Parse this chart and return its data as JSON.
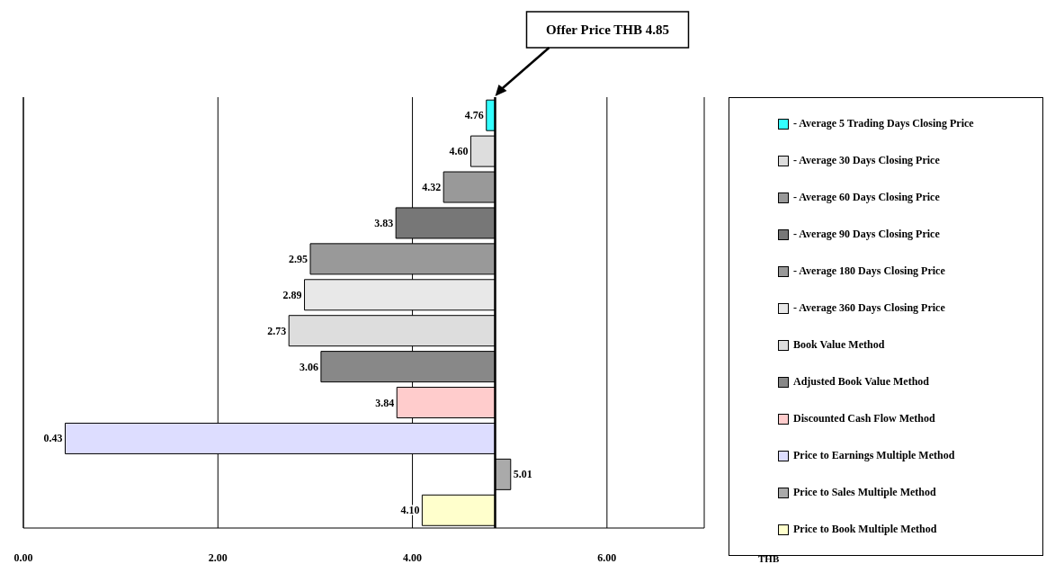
{
  "chart_data": {
    "type": "bar",
    "orientation": "horizontal",
    "xlabel": "THB",
    "categories": [
      "- Average 5 Trading Days Closing Price",
      "- Average 30 Days Closing Price",
      "- Average 60 Days Closing Price",
      "- Average 90 Days Closing Price",
      "- Average 180 Days Closing Price",
      "- Average 360 Days Closing Price",
      "Book Value Method",
      "Adjusted Book Value Method",
      "Discounted Cash Flow Method",
      "Price to Earnings Multiple Method",
      "Price to Sales Multiple Method",
      "Price to Book Multiple Method"
    ],
    "base": [
      4.85,
      4.85,
      4.85,
      4.85,
      4.85,
      4.85,
      4.85,
      4.85,
      4.85,
      4.85,
      4.85,
      4.85
    ],
    "values": [
      -0.09,
      -0.25,
      -0.53,
      -1.02,
      -1.9,
      -1.96,
      -2.12,
      -1.79,
      -1.01,
      -4.42,
      0.16,
      -0.75
    ],
    "value_labels": [
      "4.76",
      "4.60",
      "4.32",
      "3.83",
      "2.95",
      "2.89",
      "2.73",
      "3.06",
      "3.84",
      "0.43",
      "5.01",
      "4.10"
    ],
    "colors": [
      "#33ffff",
      "#dddddd",
      "#999999",
      "#777777",
      "#999999",
      "#e8e8e8",
      "#dddddd",
      "#888888",
      "#ffcccc",
      "#ddddff",
      "#aaaaaa",
      "#ffffcc"
    ],
    "xlim": [
      0,
      7
    ],
    "xticks": [
      {
        "value": 0,
        "label": "0.00"
      },
      {
        "value": 2,
        "label": "2.00"
      },
      {
        "value": 4,
        "label": "4.00"
      },
      {
        "value": 6,
        "label": "6.00"
      }
    ],
    "grid": "x",
    "legend": "right",
    "tick_labels": "x",
    "ref_lines": [
      {
        "axis": "x",
        "value": 4.85,
        "label": "Offer Price THB 4.85",
        "color": "#000000"
      }
    ]
  }
}
